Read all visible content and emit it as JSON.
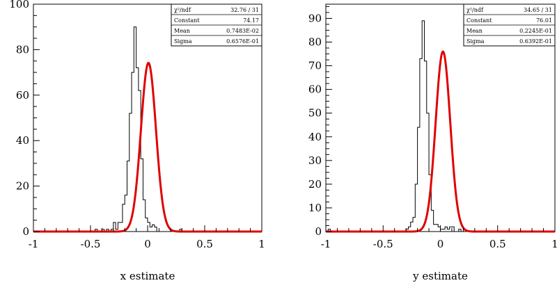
{
  "chart_data": [
    {
      "type": "histogram",
      "xlabel": "x estimate",
      "xlim": [
        -1,
        1
      ],
      "ylim": [
        0,
        100
      ],
      "yticks": [
        0,
        20,
        40,
        60,
        80,
        100
      ],
      "ytick_labels": [
        "0",
        "20",
        "40",
        "60",
        "80",
        "100"
      ],
      "xticks": [
        -1,
        -0.5,
        0,
        0.5,
        1
      ],
      "xtick_labels": [
        "-1",
        "-0.5",
        "0",
        "0.5",
        "1"
      ],
      "grid": false,
      "stats_box": {
        "rows": [
          {
            "label": "χ²/ndf",
            "value": "32.76   /   31"
          },
          {
            "label": "Constant",
            "value": "74.17"
          },
          {
            "label": "Mean",
            "value": "0.7483E-02"
          },
          {
            "label": "Sigma",
            "value": "0.6576E-01"
          }
        ]
      },
      "histogram": {
        "bin_edges_start": -1,
        "bin_width": 0.02,
        "counts": [
          0,
          0,
          0,
          0,
          0,
          0,
          0,
          0,
          0,
          0,
          0,
          0,
          0,
          0,
          0,
          0,
          0,
          0,
          0,
          0,
          0,
          0,
          0,
          0,
          0,
          0,
          0,
          1,
          0,
          0,
          1,
          0,
          1,
          0,
          1,
          4,
          1,
          4,
          4,
          12,
          16,
          31,
          52,
          70,
          90,
          72,
          62,
          32,
          14,
          6,
          4,
          2,
          3,
          2,
          0,
          0,
          0,
          0,
          0,
          0,
          0,
          0,
          0,
          0,
          1,
          0,
          0,
          0,
          0,
          0,
          0,
          0,
          0,
          0,
          0,
          0,
          0,
          0,
          0,
          0,
          0,
          0,
          0,
          0,
          0,
          0,
          0,
          0,
          0,
          0,
          0,
          0,
          0,
          0,
          0,
          0,
          0,
          0,
          0,
          0
        ],
        "color": "#000000"
      },
      "fit": {
        "function": "gaussian",
        "constant": 74.17,
        "mean": 0.007483,
        "sigma": 0.06576,
        "color": "#e00000"
      }
    },
    {
      "type": "histogram",
      "xlabel": "y estimate",
      "xlim": [
        -1,
        1
      ],
      "ylim": [
        0,
        96
      ],
      "yticks": [
        0,
        10,
        20,
        30,
        40,
        50,
        60,
        70,
        80,
        90
      ],
      "ytick_labels": [
        "0",
        "10",
        "20",
        "30",
        "40",
        "50",
        "60",
        "70",
        "80",
        "90"
      ],
      "xticks": [
        -1,
        -0.5,
        0,
        0.5,
        1
      ],
      "xtick_labels": [
        "-1",
        "-0.5",
        "0",
        "0.5",
        "1"
      ],
      "grid": false,
      "stats_box": {
        "rows": [
          {
            "label": "χ²/ndf",
            "value": "34.65   /   31"
          },
          {
            "label": "Constant",
            "value": "76.01"
          },
          {
            "label": "Mean",
            "value": "0.2245E-01"
          },
          {
            "label": "Sigma",
            "value": "0.6392E-01"
          }
        ]
      },
      "histogram": {
        "bin_edges_start": -1,
        "bin_width": 0.02,
        "counts": [
          0,
          1,
          0,
          0,
          0,
          0,
          0,
          0,
          0,
          0,
          0,
          0,
          0,
          0,
          0,
          0,
          0,
          0,
          0,
          0,
          0,
          0,
          0,
          0,
          0,
          0,
          0,
          0,
          0,
          0,
          0,
          0,
          0,
          0,
          0,
          1,
          2,
          4,
          6,
          20,
          44,
          73,
          89,
          72,
          50,
          24,
          9,
          3,
          3,
          2,
          1,
          1,
          2,
          1,
          2,
          2,
          0,
          0,
          1,
          0,
          0,
          0,
          0,
          0,
          0,
          0,
          0,
          0,
          0,
          0,
          0,
          0,
          0,
          0,
          0,
          0,
          0,
          0,
          0,
          0,
          0,
          0,
          0,
          0,
          0,
          0,
          0,
          0,
          0,
          0,
          0,
          0,
          0,
          0,
          0,
          0,
          0,
          0,
          0,
          0
        ],
        "color": "#000000"
      },
      "fit": {
        "function": "gaussian",
        "constant": 76.01,
        "mean": 0.02245,
        "sigma": 0.06392,
        "color": "#e00000"
      }
    }
  ]
}
